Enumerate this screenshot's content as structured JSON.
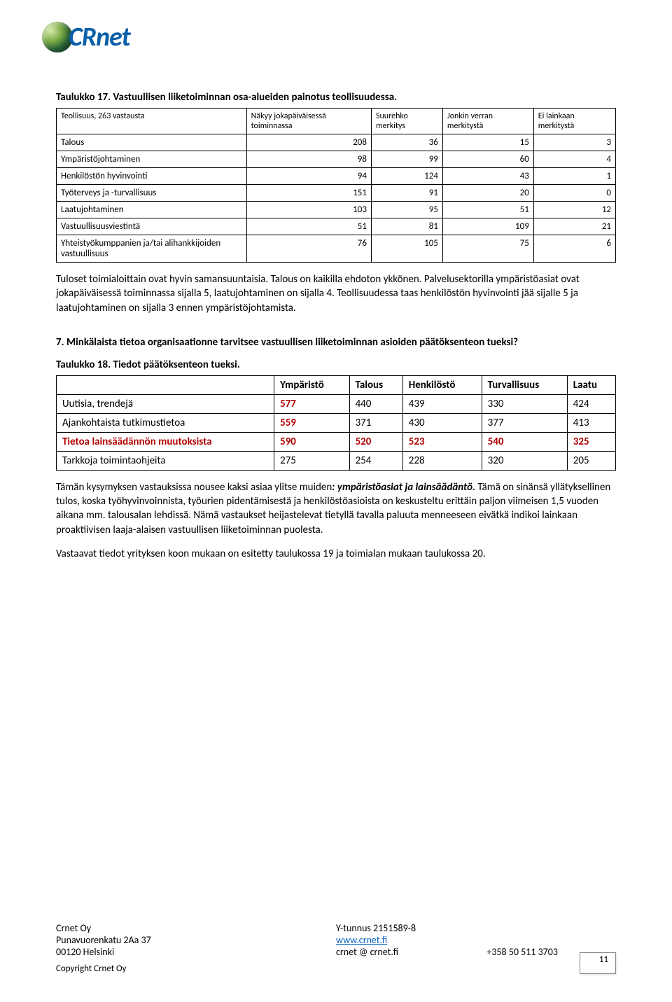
{
  "logo": {
    "text": "CRnet"
  },
  "t17": {
    "title": "Taulukko 17. Vastuullisen liiketoiminnan osa-alueiden painotus teollisuudessa.",
    "topLeft": "Teollisuus, 263 vastausta",
    "headers": [
      "Näkyy jokapäiväisessä toiminnassa",
      "Suurehko merkitys",
      "Jonkin verran merkitystä",
      "Ei lainkaan merkitystä"
    ],
    "rows": [
      {
        "label": "Talous",
        "v": [
          "208",
          "36",
          "15",
          "3"
        ]
      },
      {
        "label": "Ympäristöjohtaminen",
        "v": [
          "98",
          "99",
          "60",
          "4"
        ]
      },
      {
        "label": "Henkilöstön hyvinvointi",
        "v": [
          "94",
          "124",
          "43",
          "1"
        ]
      },
      {
        "label": "Työterveys ja -turvallisuus",
        "v": [
          "151",
          "91",
          "20",
          "0"
        ]
      },
      {
        "label": "Laatujohtaminen",
        "v": [
          "103",
          "95",
          "51",
          "12"
        ]
      },
      {
        "label": "Vastuullisuusviestintä",
        "v": [
          "51",
          "81",
          "109",
          "21"
        ]
      },
      {
        "label": "Yhteistyökumppanien ja/tai alihankkijoiden vastuullisuus",
        "v": [
          "76",
          "105",
          "75",
          "6"
        ]
      }
    ]
  },
  "para1": "Tuloset toimialoittain ovat hyvin samansuuntaisia. Talous on kaikilla ehdoton ykkönen. Palvelusektorilla ympäristöasiat ovat jokapäiväisessä toiminnassa sijalla 5, laatujohtaminen on sijalla 4. Teollisuudessa taas henkilöstön hyvinvointi jää sijalle 5 ja laatujohtaminen on sijalla 3 ennen ympäristöjohtamista.",
  "q7": {
    "num": "7.",
    "text": "Minkälaista tietoa organisaationne tarvitsee vastuullisen liiketoiminnan asioiden päätöksenteon tueksi?"
  },
  "t18": {
    "title": "Taulukko 18. Tiedot päätöksenteon tueksi.",
    "headers": [
      "Ympäristö",
      "Talous",
      "Henkilöstö",
      "Turvallisuus",
      "Laatu"
    ],
    "rows": [
      {
        "label": "Uutisia, trendejä",
        "v": [
          "577",
          "440",
          "439",
          "330",
          "424"
        ],
        "red": false,
        "firstRed": true
      },
      {
        "label": "Ajankohtaista tutkimustietoa",
        "v": [
          "559",
          "371",
          "430",
          "377",
          "413"
        ],
        "red": false,
        "firstRed": true
      },
      {
        "label": "Tietoa lainsäädännön muutoksista",
        "v": [
          "590",
          "520",
          "523",
          "540",
          "325"
        ],
        "red": true,
        "firstRed": true
      },
      {
        "label": "Tarkkoja toimintaohjeita",
        "v": [
          "275",
          "254",
          "228",
          "320",
          "205"
        ],
        "red": false,
        "firstRed": false
      }
    ]
  },
  "para2a": "Tämän kysymyksen vastauksissa nousee kaksi asiaa ylitse muiden",
  "para2b": ": ympäristöasiat ja lainsäädäntö.",
  "para2c": " Tämä on sinänsä yllätyksellinen tulos, koska työhyvinvoinnista, työurien pidentämisestä ja henkilöstöasioista on keskusteltu erittäin paljon viimeisen 1,5 vuoden aikana mm. talousalan lehdissä. Nämä vastaukset heijastelevat tietyllä tavalla paluuta menneeseen eivätkä indikoi lainkaan proaktiivisen laaja-alaisen vastuullisen liiketoiminnan puolesta.",
  "para3": "Vastaavat tiedot yrityksen koon mukaan on esitetty taulukossa 19 ja toimialan mukaan taulukossa 20.",
  "footer": {
    "l1": "Crnet Oy",
    "l2": "Punavuorenkatu 2Aa 37",
    "l3": "00120 Helsinki",
    "r1": "Y-tunnus  2151589-8",
    "r2": "www.crnet.fi",
    "r3a": "crnet @ crnet.fi",
    "r3b": "+358 50 511 3703",
    "copyright": "Copyright Crnet Oy",
    "page": "11"
  }
}
